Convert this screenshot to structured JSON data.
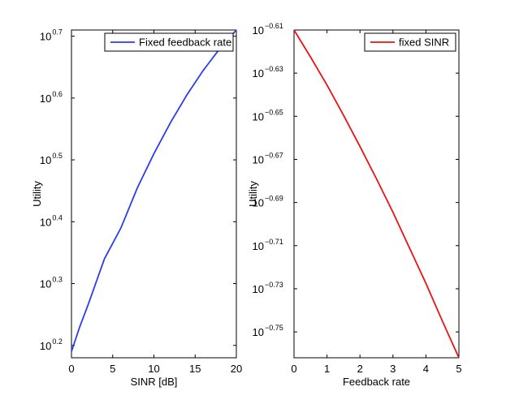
{
  "chart_data": [
    {
      "type": "line",
      "yscale": "log",
      "xlabel": "SINR [dB]",
      "ylabel": "Utility",
      "xlim": [
        0,
        20
      ],
      "ylim_exponent": [
        0.18,
        0.71
      ],
      "x_ticks": [
        "0",
        "5",
        "10",
        "15",
        "20"
      ],
      "y_ticks": [
        {
          "base": "10",
          "exp": "0.2",
          "value": 0.2
        },
        {
          "base": "10",
          "exp": "0.3",
          "value": 0.3
        },
        {
          "base": "10",
          "exp": "0.4",
          "value": 0.4
        },
        {
          "base": "10",
          "exp": "0.5",
          "value": 0.5
        },
        {
          "base": "10",
          "exp": "0.6",
          "value": 0.6
        },
        {
          "base": "10",
          "exp": "0.7",
          "value": 0.7
        }
      ],
      "legend_position": "top-right",
      "series": [
        {
          "name": "Fixed feedback rate",
          "color": "#2b3cf0",
          "x": [
            0,
            1,
            2,
            4,
            6,
            8,
            10,
            12,
            14,
            16,
            18,
            20
          ],
          "log10_y": [
            0.19,
            0.23,
            0.265,
            0.34,
            0.39,
            0.455,
            0.51,
            0.56,
            0.605,
            0.645,
            0.68,
            0.71
          ]
        }
      ]
    },
    {
      "type": "line",
      "yscale": "log",
      "xlabel": "Feedback rate",
      "ylabel": "Utility",
      "xlim": [
        0,
        5
      ],
      "ylim_exponent": [
        -0.762,
        -0.61
      ],
      "x_ticks": [
        "0",
        "1",
        "2",
        "3",
        "4",
        "5"
      ],
      "y_ticks": [
        {
          "base": "10",
          "exp": "−0.61",
          "value": -0.61
        },
        {
          "base": "10",
          "exp": "−0.63",
          "value": -0.63
        },
        {
          "base": "10",
          "exp": "−0.65",
          "value": -0.65
        },
        {
          "base": "10",
          "exp": "−0.67",
          "value": -0.67
        },
        {
          "base": "10",
          "exp": "−0.69",
          "value": -0.69
        },
        {
          "base": "10",
          "exp": "−0.71",
          "value": -0.71
        },
        {
          "base": "10",
          "exp": "−0.73",
          "value": -0.73
        },
        {
          "base": "10",
          "exp": "−0.75",
          "value": -0.75
        }
      ],
      "legend_position": "top-right",
      "series": [
        {
          "name": "fixed SINR",
          "color": "#ee1111",
          "x": [
            0,
            0.5,
            1,
            1.5,
            2,
            2.5,
            3,
            3.5,
            4,
            4.5,
            5
          ],
          "log10_y": [
            -0.61,
            -0.6225,
            -0.6355,
            -0.6495,
            -0.664,
            -0.679,
            -0.6945,
            -0.711,
            -0.7275,
            -0.745,
            -0.762
          ]
        }
      ]
    }
  ]
}
